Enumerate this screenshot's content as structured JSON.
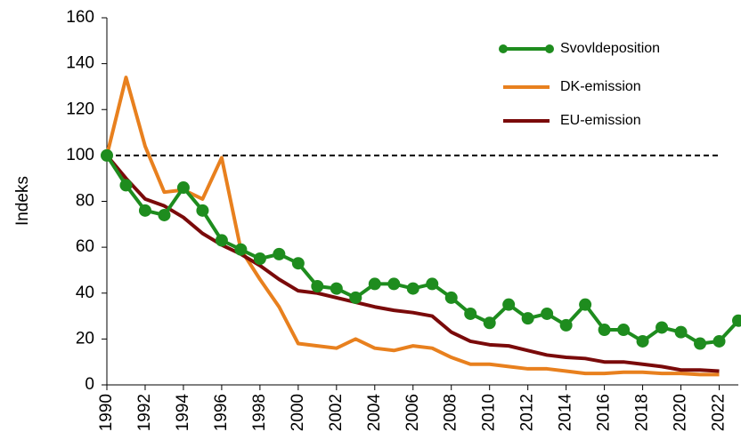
{
  "chart_data": {
    "type": "line",
    "y_label": "Indeks",
    "x": [
      1990,
      1991,
      1992,
      1993,
      1994,
      1995,
      1996,
      1997,
      1998,
      1999,
      2000,
      2001,
      2002,
      2003,
      2004,
      2005,
      2006,
      2007,
      2008,
      2009,
      2010,
      2011,
      2012,
      2013,
      2014,
      2015,
      2016,
      2017,
      2018,
      2019,
      2020,
      2021,
      2022,
      2023
    ],
    "series": [
      {
        "name": "Svovldeposition",
        "color": "#1e8c1e",
        "markers": true,
        "values": [
          100,
          87,
          76,
          74,
          86,
          76,
          63,
          59,
          55,
          57,
          53,
          43,
          42,
          38,
          44,
          44,
          42,
          44,
          38,
          31,
          27,
          35,
          29,
          31,
          26,
          35,
          24,
          24,
          19,
          25,
          23,
          18,
          19,
          28
        ]
      },
      {
        "name": "DK-emission",
        "color": "#e8801e",
        "markers": false,
        "values": [
          100,
          134,
          104,
          84,
          85,
          81,
          99,
          59,
          46,
          34,
          18,
          17,
          16,
          20,
          16,
          15,
          17,
          16,
          12,
          9,
          9,
          8,
          7,
          7,
          6,
          5,
          5,
          5.5,
          5.5,
          5,
          5,
          4.5,
          4.5,
          null
        ]
      },
      {
        "name": "EU-emission",
        "color": "#7a0a0a",
        "markers": false,
        "values": [
          100,
          90,
          81,
          78,
          73,
          66,
          61,
          57,
          52,
          46,
          41,
          40,
          38,
          36,
          34,
          32.5,
          31.5,
          30,
          23,
          19,
          17.5,
          17,
          15,
          13,
          12,
          11.5,
          10,
          10,
          9,
          8,
          6.5,
          6.5,
          6,
          null
        ]
      }
    ],
    "reference_line": {
      "y": 100,
      "x": [
        1990,
        2022
      ]
    },
    "xlim": [
      1990,
      2023
    ],
    "xticks": [
      1990,
      1992,
      1994,
      1996,
      1998,
      2000,
      2002,
      2004,
      2006,
      2008,
      2010,
      2012,
      2014,
      2016,
      2018,
      2020,
      2022
    ],
    "ylim": [
      0,
      160
    ],
    "yticks": [
      0,
      20,
      40,
      60,
      80,
      100,
      120,
      140,
      160
    ],
    "legend": "upper right",
    "grid": false
  }
}
